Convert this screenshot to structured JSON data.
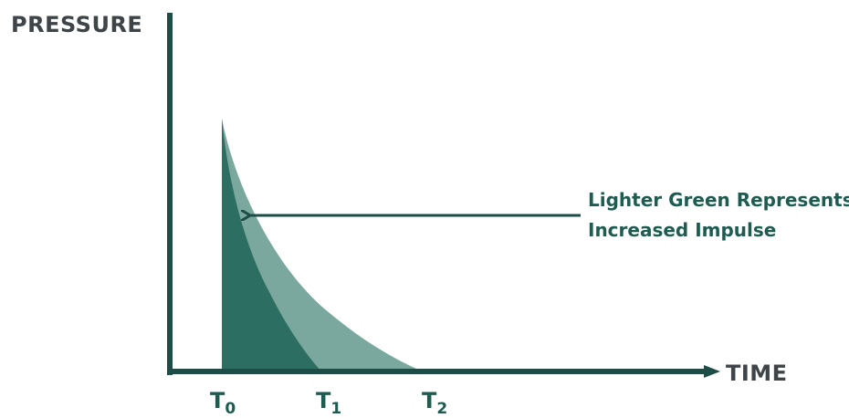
{
  "labels": {
    "y_axis": "PRESSURE",
    "x_axis": "TIME"
  },
  "callout": {
    "line1": "Lighter Green Represents",
    "line2": "Increased Impulse"
  },
  "ticks": [
    {
      "main": "T",
      "sub": "0"
    },
    {
      "main": "T",
      "sub": "1"
    },
    {
      "main": "T",
      "sub": "2"
    }
  ],
  "colors": {
    "axis": "#1d4d46",
    "dark_fill": "#2d6e63",
    "light_fill": "#7aa79e",
    "text_dark": "#3e4447",
    "text_green": "#1e5b50"
  }
}
